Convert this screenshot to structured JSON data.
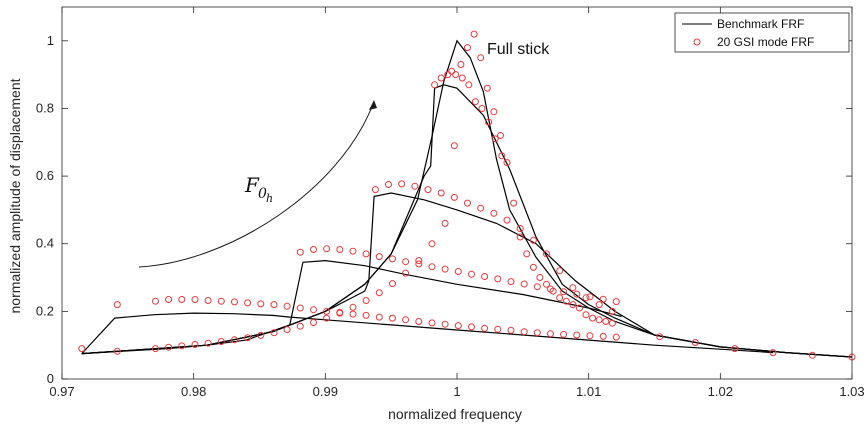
{
  "chart_data": {
    "type": "line",
    "xlabel": "normalized frequency",
    "ylabel": "normalized amplitude of displacement",
    "xlim": [
      0.97,
      1.03
    ],
    "ylim": [
      0,
      1.1
    ],
    "x_ticks": [
      "0.97",
      "0.98",
      "0.99",
      "1",
      "1.01",
      "1.02",
      "1.03"
    ],
    "y_ticks": [
      "0",
      "0.2",
      "0.4",
      "0.6",
      "0.8",
      "1"
    ],
    "grid": false,
    "legend_position": "top-right",
    "annotations": {
      "full_stick": "Full stick",
      "force_symbol": "F",
      "force_sub": "0",
      "force_subsub": "h"
    },
    "series": [
      {
        "name": "Benchmark FRF",
        "style": "line",
        "color": "#000000",
        "curves": [
          [
            [
              0.9715,
              0.075
            ],
            [
              0.974,
              0.18
            ],
            [
              0.977,
              0.19
            ],
            [
              0.98,
              0.195
            ],
            [
              0.983,
              0.193
            ],
            [
              0.986,
              0.188
            ],
            [
              0.9873,
              0.183
            ],
            [
              0.99,
              0.175
            ],
            [
              0.995,
              0.16
            ],
            [
              1.0,
              0.145
            ],
            [
              1.005,
              0.13
            ],
            [
              1.01,
              0.115
            ],
            [
              1.015,
              0.1
            ],
            [
              1.02,
              0.088
            ],
            [
              1.024,
              0.078
            ]
          ],
          [
            [
              0.9715,
              0.075
            ],
            [
              0.975,
              0.083
            ],
            [
              0.978,
              0.09
            ],
            [
              0.981,
              0.1
            ],
            [
              0.984,
              0.115
            ],
            [
              0.9873,
              0.16
            ],
            [
              0.9883,
              0.345
            ],
            [
              0.99,
              0.35
            ],
            [
              0.993,
              0.335
            ],
            [
              0.996,
              0.31
            ],
            [
              1.0,
              0.28
            ],
            [
              1.005,
              0.25
            ],
            [
              1.01,
              0.21
            ],
            [
              1.0125,
              0.185
            ]
          ],
          [
            [
              0.9715,
              0.075
            ],
            [
              0.981,
              0.1
            ],
            [
              0.986,
              0.14
            ],
            [
              0.99,
              0.2
            ],
            [
              0.993,
              0.26
            ],
            [
              0.9933,
              0.29
            ],
            [
              0.9937,
              0.54
            ],
            [
              0.995,
              0.55
            ],
            [
              0.9975,
              0.53
            ],
            [
              1.0,
              0.5
            ],
            [
              1.003,
              0.46
            ],
            [
              1.006,
              0.4
            ],
            [
              1.009,
              0.29
            ],
            [
              1.012,
              0.2
            ],
            [
              1.015,
              0.13
            ],
            [
              1.02,
              0.095
            ],
            [
              1.025,
              0.078
            ],
            [
              1.03,
              0.065
            ]
          ],
          [
            [
              0.9715,
              0.075
            ],
            [
              0.981,
              0.1
            ],
            [
              0.986,
              0.14
            ],
            [
              0.99,
              0.2
            ],
            [
              0.993,
              0.28
            ],
            [
              0.995,
              0.37
            ],
            [
              0.9975,
              0.6
            ],
            [
              0.998,
              0.63
            ],
            [
              0.9983,
              0.86
            ],
            [
              0.999,
              0.87
            ],
            [
              1.0,
              0.86
            ],
            [
              1.002,
              0.78
            ],
            [
              1.004,
              0.62
            ],
            [
              1.006,
              0.42
            ],
            [
              1.008,
              0.28
            ],
            [
              1.01,
              0.22
            ],
            [
              1.012,
              0.18
            ],
            [
              1.015,
              0.13
            ],
            [
              1.02,
              0.095
            ],
            [
              1.025,
              0.078
            ],
            [
              1.03,
              0.065
            ]
          ],
          [
            [
              0.9715,
              0.075
            ],
            [
              0.981,
              0.1
            ],
            [
              0.986,
              0.14
            ],
            [
              0.99,
              0.2
            ],
            [
              0.993,
              0.28
            ],
            [
              0.995,
              0.37
            ],
            [
              0.997,
              0.53
            ],
            [
              0.998,
              0.7
            ],
            [
              0.999,
              0.88
            ],
            [
              1.0,
              1.0
            ],
            [
              1.001,
              0.95
            ],
            [
              1.002,
              0.85
            ],
            [
              1.003,
              0.65
            ],
            [
              1.004,
              0.5
            ],
            [
              1.006,
              0.36
            ],
            [
              1.008,
              0.26
            ],
            [
              1.01,
              0.21
            ],
            [
              1.012,
              0.17
            ],
            [
              1.015,
              0.13
            ],
            [
              1.02,
              0.095
            ],
            [
              1.025,
              0.078
            ],
            [
              1.03,
              0.065
            ]
          ]
        ]
      },
      {
        "name": "20 GSI mode FRF",
        "style": "markers",
        "marker": "circle",
        "color": "#e8383d",
        "x": [
          0.9715,
          0.9742,
          0.9771,
          0.9781,
          0.9791,
          0.9801,
          0.9811,
          0.9821,
          0.9831,
          0.9841,
          0.9851,
          0.9861,
          0.9871,
          0.9881,
          0.9891,
          0.9901,
          0.9911,
          0.9921,
          0.9931,
          0.9941,
          0.9951,
          0.9961,
          0.9971,
          0.9981,
          0.9991,
          1.0001,
          1.0011,
          1.0021,
          1.0031,
          1.0041,
          1.0051,
          1.0061,
          1.0071,
          1.0081,
          1.0091,
          1.0101,
          1.0111,
          1.0121,
          0.9881,
          0.9891,
          0.9901,
          0.9911,
          0.9921,
          0.9931,
          0.9941,
          0.9951,
          0.9961,
          0.9971,
          0.9981,
          0.9991,
          1.0001,
          1.0011,
          1.0021,
          1.0031,
          1.0041,
          1.0051,
          1.0061,
          1.0071,
          1.0081,
          1.0091,
          1.0101,
          1.0111,
          1.0121,
          0.9938,
          0.9948,
          0.9958,
          0.9968,
          0.9978,
          0.9988,
          0.9998,
          1.0008,
          1.0018,
          1.0028,
          1.0038,
          1.0048,
          1.0058,
          1.0068,
          1.0078,
          1.0088,
          1.0098,
          1.0108,
          1.0118,
          0.9742,
          0.9771,
          0.9781,
          0.9791,
          0.9801,
          0.9811,
          0.9821,
          0.9831,
          0.9841,
          0.9851,
          0.9861,
          0.9871,
          0.9881,
          0.9891,
          0.9901,
          0.9911,
          0.9921,
          0.9931,
          0.9941,
          0.9951,
          0.9961,
          0.9971,
          0.9981,
          0.9991,
          0.9998,
          1.0003,
          1.0008,
          1.0013,
          1.0018,
          1.0023,
          1.0028,
          1.0033,
          1.0038,
          1.0043,
          1.0048,
          1.0053,
          1.0058,
          1.0063,
          1.0068,
          1.0073,
          1.0078,
          1.0083,
          1.0088,
          1.0093,
          1.0098,
          1.0103,
          1.0108,
          1.0113,
          1.0118,
          1.0154,
          1.0181,
          1.0211,
          1.024,
          1.027,
          1.03,
          0.9983,
          0.9988,
          0.9993,
          0.9996,
          0.9999,
          1.0004,
          1.0009,
          1.0014,
          1.0019,
          1.0024,
          1.0029,
          1.0034
        ],
        "y": [
          0.09,
          0.22,
          0.23,
          0.235,
          0.235,
          0.235,
          0.232,
          0.23,
          0.228,
          0.225,
          0.222,
          0.22,
          0.215,
          0.21,
          0.205,
          0.2,
          0.197,
          0.192,
          0.188,
          0.183,
          0.18,
          0.175,
          0.17,
          0.166,
          0.162,
          0.158,
          0.154,
          0.15,
          0.147,
          0.144,
          0.14,
          0.137,
          0.134,
          0.132,
          0.13,
          0.128,
          0.126,
          0.124,
          0.375,
          0.383,
          0.385,
          0.383,
          0.378,
          0.37,
          0.362,
          0.355,
          0.347,
          0.34,
          0.332,
          0.325,
          0.318,
          0.31,
          0.303,
          0.296,
          0.288,
          0.281,
          0.273,
          0.266,
          0.258,
          0.251,
          0.243,
          0.236,
          0.229,
          0.56,
          0.575,
          0.577,
          0.57,
          0.56,
          0.55,
          0.537,
          0.52,
          0.505,
          0.49,
          0.47,
          0.445,
          0.41,
          0.37,
          0.32,
          0.27,
          0.24,
          0.22,
          0.2,
          0.082,
          0.09,
          0.094,
          0.098,
          0.102,
          0.106,
          0.111,
          0.116,
          0.122,
          0.129,
          0.137,
          0.146,
          0.156,
          0.167,
          0.18,
          0.195,
          0.212,
          0.232,
          0.255,
          0.282,
          0.313,
          0.35,
          0.4,
          0.46,
          0.69,
          0.93,
          0.98,
          1.02,
          0.95,
          0.86,
          0.79,
          0.72,
          0.64,
          0.52,
          0.42,
          0.37,
          0.33,
          0.3,
          0.28,
          0.26,
          0.24,
          0.23,
          0.22,
          0.21,
          0.19,
          0.18,
          0.175,
          0.17,
          0.165,
          0.125,
          0.108,
          0.09,
          0.078,
          0.07,
          0.065,
          0.87,
          0.89,
          0.9,
          0.91,
          0.9,
          0.89,
          0.87,
          0.82,
          0.8,
          0.76,
          0.71,
          0.66
        ]
      }
    ]
  }
}
